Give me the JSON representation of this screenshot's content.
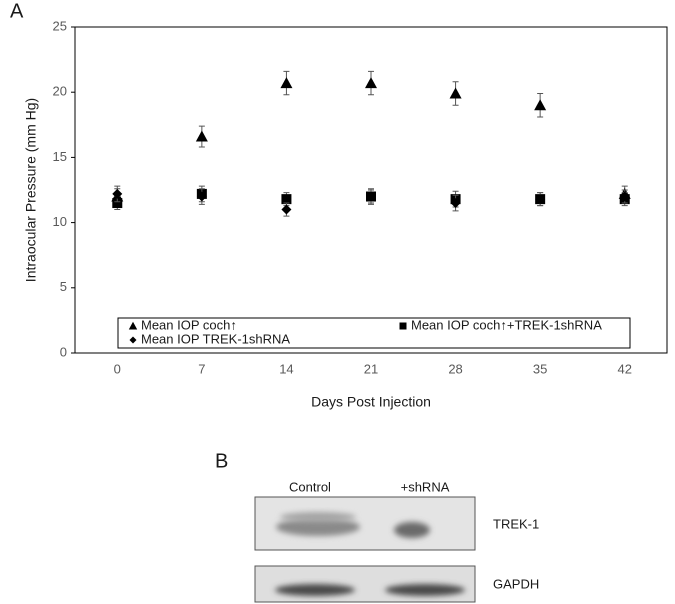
{
  "chart_data": {
    "type": "scatter",
    "y_label": "Intraocular Pressure (mm Hg)",
    "x_label": "Days Post Injection",
    "categories": [
      "0",
      "7",
      "14",
      "21",
      "28",
      "35",
      "42"
    ],
    "ylim": [
      0,
      25
    ],
    "yticks": [
      0,
      5,
      10,
      15,
      20,
      25
    ],
    "legend": "bottom",
    "series": [
      {
        "name": "Mean IOP coch↑",
        "marker": "triangle",
        "color": "#000000",
        "values": [
          12.0,
          16.6,
          20.7,
          20.7,
          19.9,
          19.0,
          12.2
        ],
        "errors": [
          0.6,
          0.8,
          0.9,
          0.9,
          0.9,
          0.9,
          0.6
        ]
      },
      {
        "name": "Mean IOP coch↑+TREK-1shRNA",
        "marker": "square",
        "color": "#000000",
        "values": [
          11.5,
          12.2,
          11.8,
          12.0,
          11.8,
          11.8,
          11.8
        ],
        "errors": [
          0.5,
          0.6,
          0.5,
          0.6,
          0.6,
          0.5,
          0.5
        ]
      },
      {
        "name": "Mean IOP TREK-1shRNA",
        "marker": "diamond",
        "color": "#000000",
        "values": [
          12.2,
          12.0,
          11.0,
          12.0,
          11.5,
          11.8,
          12.0
        ],
        "errors": [
          0.6,
          0.6,
          0.5,
          0.5,
          0.6,
          0.5,
          0.5
        ]
      }
    ]
  },
  "panels": {
    "a": "A",
    "b": "B"
  },
  "blot": {
    "columns": [
      "Control",
      "+shRNA"
    ],
    "rows": [
      "TREK-1",
      "GAPDH"
    ]
  }
}
